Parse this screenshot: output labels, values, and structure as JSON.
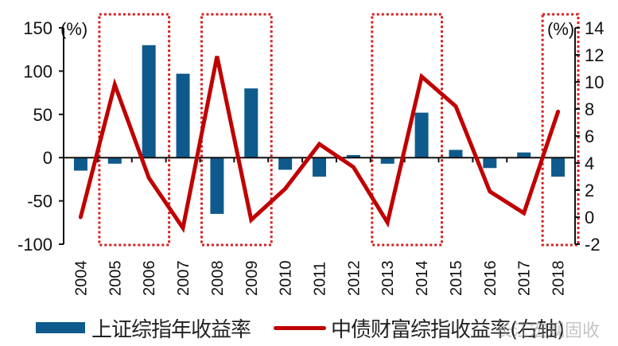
{
  "chart_data": {
    "type": "bar+line",
    "title": "",
    "categories": [
      "2004",
      "2005",
      "2006",
      "2007",
      "2008",
      "2009",
      "2010",
      "2011",
      "2012",
      "2013",
      "2014",
      "2015",
      "2016",
      "2017",
      "2018"
    ],
    "series": [
      {
        "name": "上证综指年收益率",
        "type": "bar",
        "axis": "left",
        "color": "#0f5a8c",
        "values": [
          -15,
          -7,
          130,
          97,
          -65,
          80,
          -14,
          -22,
          3,
          -7,
          52,
          9,
          -12,
          6,
          -22
        ]
      },
      {
        "name": "中债财富综指收益率(右轴)",
        "type": "line",
        "axis": "right",
        "color": "#c00000",
        "values": [
          0.0,
          9.8,
          2.9,
          -0.8,
          11.9,
          -0.2,
          2.1,
          5.4,
          3.7,
          -0.4,
          10.4,
          8.2,
          1.9,
          0.3,
          7.8
        ]
      }
    ],
    "left_axis": {
      "label": "(%)",
      "min": -100,
      "max": 150,
      "ticks": [
        150,
        100,
        50,
        0,
        -50,
        -100
      ]
    },
    "right_axis": {
      "label": "(%)",
      "min": -2,
      "max": 14,
      "ticks": [
        14,
        12,
        10,
        8,
        6,
        4,
        2,
        0,
        -2
      ]
    },
    "xlabel": "",
    "ylabel": "(%)",
    "ylim": [
      -100,
      150
    ],
    "y2lim": [
      -2,
      14
    ],
    "grid": false,
    "legend_position": "bottom",
    "highlight_boxes": [
      {
        "from": "2005",
        "to": "2006"
      },
      {
        "from": "2008",
        "to": "2009"
      },
      {
        "from": "2013",
        "to": "2014"
      },
      {
        "from": "2018",
        "to": "2018"
      }
    ],
    "highlight_color": "#d42020"
  },
  "legend": {
    "bar_label": "上证综指年收益率",
    "line_label": "中债财富综指收益率(右轴)"
  },
  "axes": {
    "left_unit": "(%)",
    "right_unit": "(%)"
  },
  "watermark": "长江宏观固收"
}
